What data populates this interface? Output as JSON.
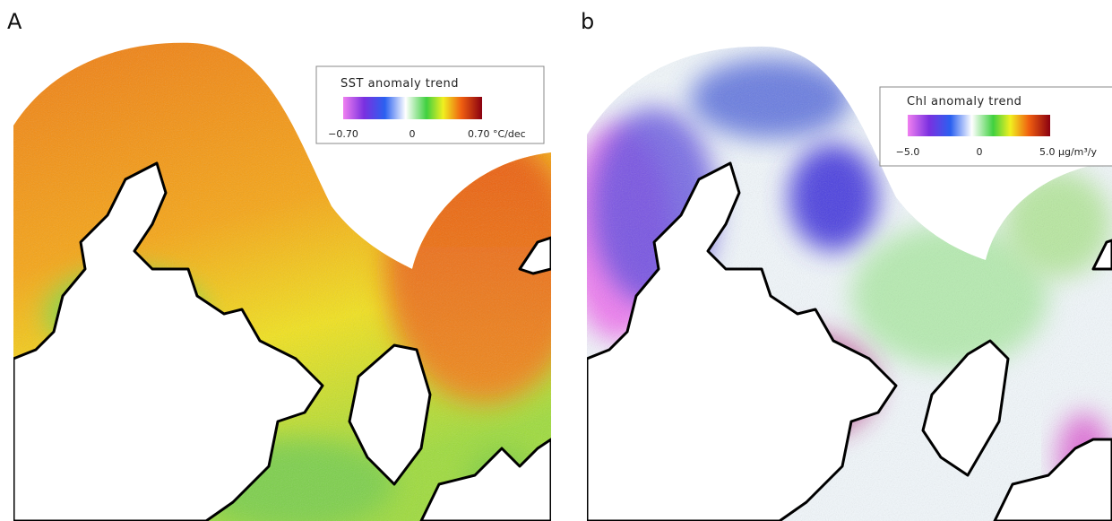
{
  "panels": [
    {
      "label": "A",
      "legend": {
        "title": "SST anomaly trend",
        "ticks": [
          "−0.70",
          "0",
          "0.70 °C/dec"
        ]
      }
    },
    {
      "label": "b",
      "legend": {
        "title": "Chl anomaly trend",
        "ticks": [
          "−5.0",
          "0",
          "5.0 μg/m³/y"
        ]
      }
    }
  ]
}
